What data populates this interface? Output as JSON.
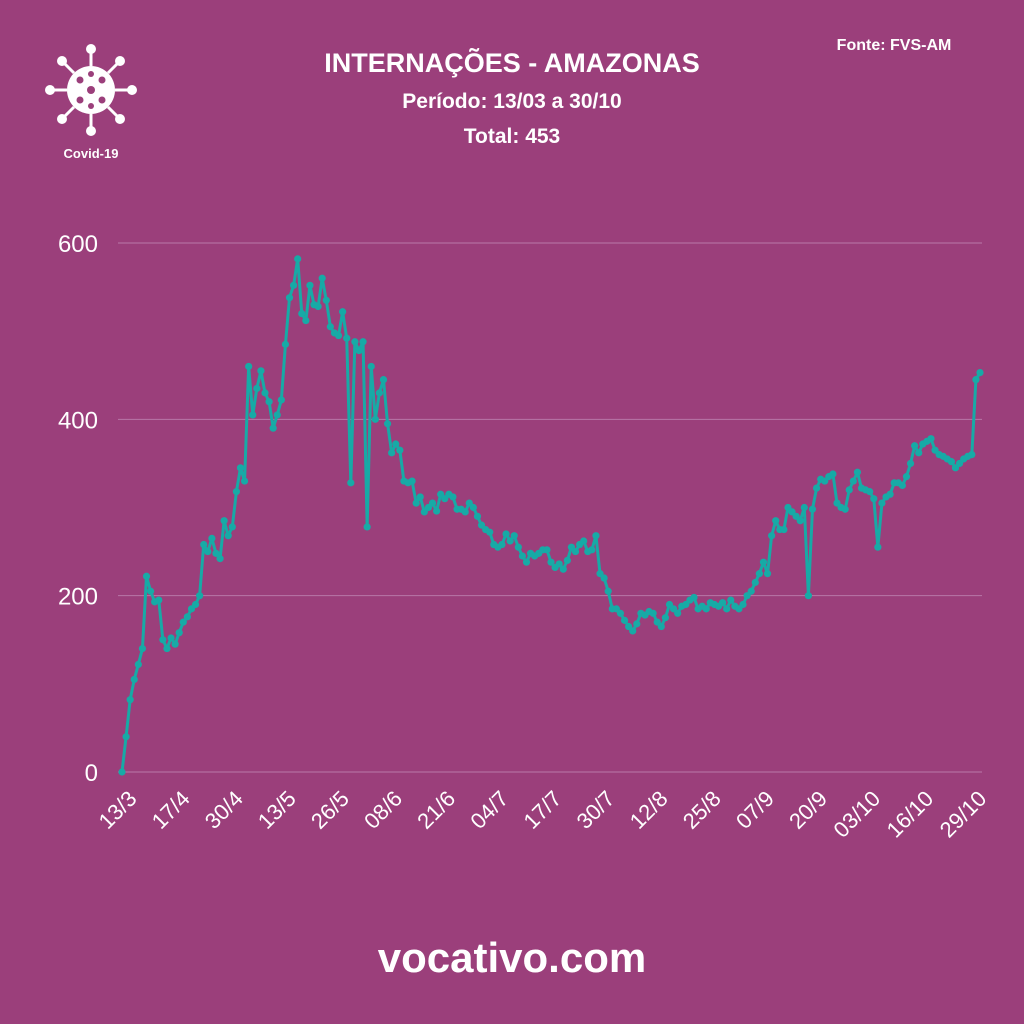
{
  "chart_data": {
    "type": "line",
    "title": "INTERNAÇÕES - AMAZONAS",
    "subtitle": "Período: 13/03 a 30/10",
    "total_text": "Total: 453",
    "source": "Fonte: FVS-AM",
    "logo_label": "Covid-19",
    "footer": "vocativo.com",
    "color": "#17aaa6",
    "grid": true,
    "ylim": [
      0,
      600
    ],
    "yticks": [
      0,
      200,
      400,
      600
    ],
    "categories": [
      "13/3",
      null,
      null,
      null,
      null,
      null,
      null,
      null,
      null,
      null,
      null,
      null,
      null,
      "17/4",
      null,
      null,
      null,
      null,
      null,
      null,
      null,
      null,
      null,
      null,
      null,
      null,
      "30/4",
      null,
      null,
      null,
      null,
      null,
      null,
      null,
      null,
      null,
      null,
      null,
      null,
      "13/5",
      null,
      null,
      null,
      null,
      null,
      null,
      null,
      null,
      null,
      null,
      null,
      null,
      "26/5",
      null,
      null,
      null,
      null,
      null,
      null,
      null,
      null,
      null,
      null,
      null,
      null,
      "08/6",
      null,
      null,
      null,
      null,
      null,
      null,
      null,
      null,
      null,
      null,
      null,
      null,
      "21/6",
      null,
      null,
      null,
      null,
      null,
      null,
      null,
      null,
      null,
      null,
      null,
      null,
      "04/7",
      null,
      null,
      null,
      null,
      null,
      null,
      null,
      null,
      null,
      null,
      null,
      null,
      "17/7",
      null,
      null,
      null,
      null,
      null,
      null,
      null,
      null,
      null,
      null,
      null,
      null,
      "30/7",
      null,
      null,
      null,
      null,
      null,
      null,
      null,
      null,
      null,
      null,
      null,
      null,
      "12/8",
      null,
      null,
      null,
      null,
      null,
      null,
      null,
      null,
      null,
      null,
      null,
      null,
      "25/8",
      null,
      null,
      null,
      null,
      null,
      null,
      null,
      null,
      null,
      null,
      null,
      null,
      "07/9",
      null,
      null,
      null,
      null,
      null,
      null,
      null,
      null,
      null,
      null,
      null,
      null,
      "20/9",
      null,
      null,
      null,
      null,
      null,
      null,
      null,
      null,
      null,
      null,
      null,
      null,
      "03/10",
      null,
      null,
      null,
      null,
      null,
      null,
      null,
      null,
      null,
      null,
      null,
      null,
      "16/10",
      null,
      null,
      null,
      null,
      null,
      null,
      null,
      null,
      null,
      null,
      null,
      null,
      "29/10",
      null,
      null
    ],
    "values": [
      0,
      40,
      82,
      105,
      122,
      140,
      222,
      205,
      193,
      195,
      150,
      140,
      152,
      145,
      158,
      170,
      176,
      185,
      190,
      200,
      258,
      250,
      265,
      248,
      242,
      285,
      268,
      278,
      318,
      345,
      330,
      460,
      405,
      435,
      455,
      430,
      420,
      390,
      405,
      422,
      485,
      538,
      552,
      582,
      520,
      512,
      552,
      530,
      528,
      560,
      535,
      505,
      498,
      495,
      522,
      492,
      328,
      488,
      478,
      488,
      278,
      460,
      400,
      430,
      445,
      395,
      362,
      372,
      365,
      330,
      328,
      330,
      305,
      312,
      295,
      300,
      305,
      296,
      315,
      310,
      315,
      312,
      298,
      298,
      295,
      305,
      300,
      290,
      280,
      275,
      272,
      258,
      255,
      258,
      270,
      262,
      268,
      255,
      245,
      238,
      248,
      245,
      248,
      252,
      252,
      238,
      232,
      236,
      230,
      240,
      255,
      250,
      258,
      262,
      250,
      252,
      268,
      225,
      220,
      205,
      185,
      185,
      180,
      172,
      165,
      160,
      168,
      180,
      178,
      182,
      180,
      170,
      165,
      175,
      190,
      185,
      180,
      188,
      190,
      195,
      198,
      185,
      188,
      185,
      192,
      190,
      188,
      192,
      185,
      195,
      188,
      185,
      190,
      200,
      205,
      215,
      225,
      238,
      225,
      268,
      285,
      275,
      275,
      300,
      295,
      290,
      285,
      300,
      200,
      298,
      322,
      332,
      330,
      335,
      338,
      305,
      300,
      298,
      320,
      330,
      340,
      322,
      320,
      318,
      310,
      255,
      305,
      312,
      315,
      328,
      328,
      325,
      335,
      350,
      370,
      362,
      372,
      375,
      378,
      365,
      360,
      358,
      355,
      352,
      345,
      350,
      355,
      358,
      360,
      445,
      453
    ]
  }
}
